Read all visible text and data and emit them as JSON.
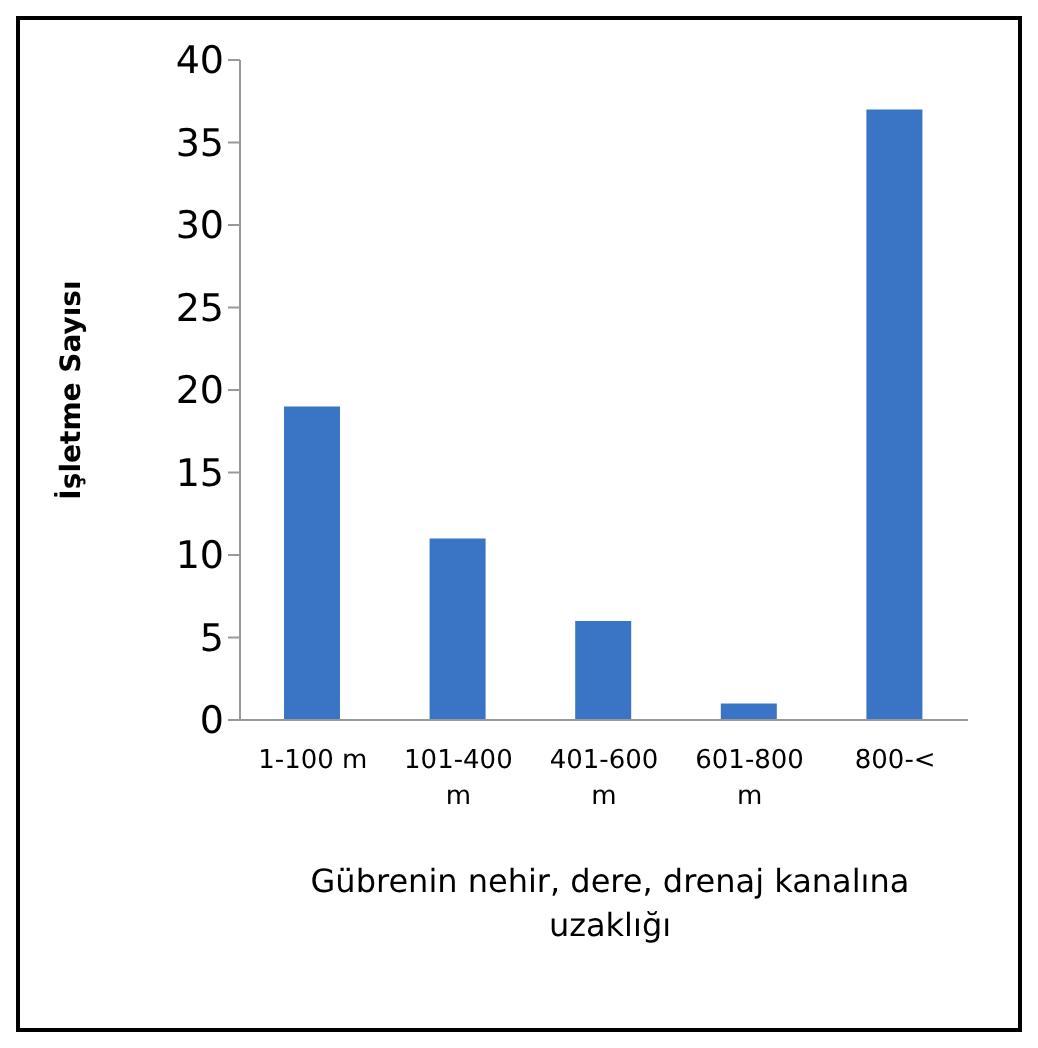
{
  "chart_data": {
    "type": "bar",
    "categories": [
      "1-100 m",
      "101-400 m",
      "401-600 m",
      "601-800 m",
      "800-<"
    ],
    "values": [
      19,
      11,
      6,
      1,
      37
    ],
    "color": "#3a74c4",
    "xlabel": "Gübrenin nehir, dere, drenaj kanalına uzaklığı",
    "ylabel": "İşletme Sayısı",
    "ylim": [
      0,
      40
    ],
    "yticks": [
      0,
      5,
      10,
      15,
      20,
      25,
      30,
      35,
      40
    ],
    "grid": false,
    "legend": false
  }
}
